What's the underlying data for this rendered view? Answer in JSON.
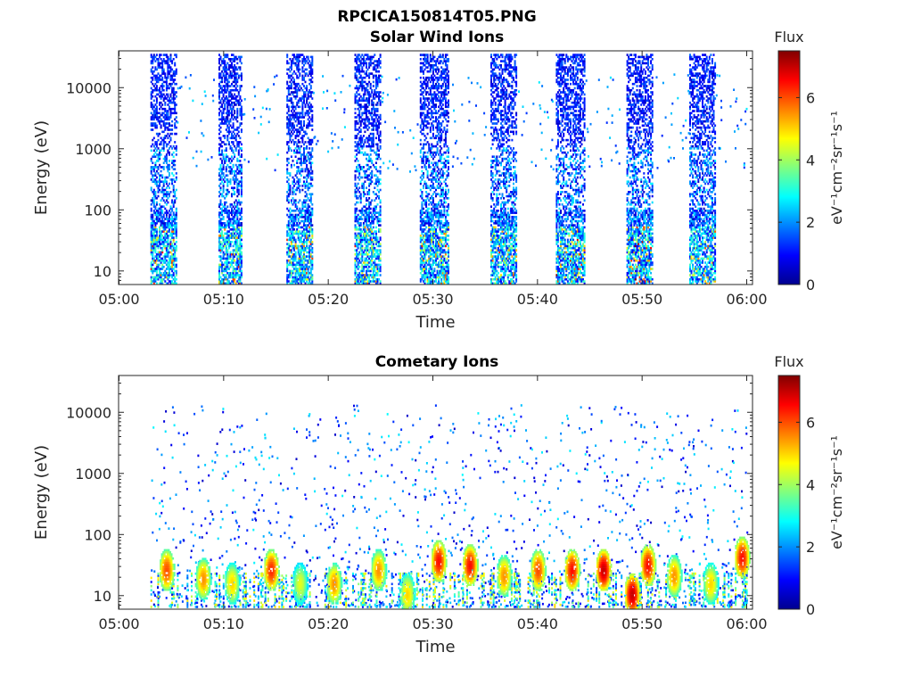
{
  "figure": {
    "title": "RPCICA150814T05.PNG"
  },
  "chart_data": [
    {
      "type": "heatmap",
      "title": "Solar Wind Ions",
      "xlabel": "Time",
      "ylabel": "Energy (eV)",
      "x_ticks": [
        "05:00",
        "05:10",
        "05:20",
        "05:30",
        "05:40",
        "05:50",
        "06:00"
      ],
      "x_range": [
        "05:00",
        "06:00"
      ],
      "y_scale": "log",
      "y_ticks": [
        10,
        100,
        1000,
        10000
      ],
      "y_tick_labels": [
        "10",
        "100",
        "1000",
        "10000"
      ],
      "ylim": [
        6,
        40000
      ],
      "colorbar": {
        "title": "Flux",
        "label": "eV⁻¹cm⁻²sr⁻¹s⁻¹",
        "range": [
          0,
          7.5
        ],
        "ticks": [
          0,
          2,
          4,
          6
        ],
        "colormap": "jet"
      },
      "sweeps": [
        {
          "start": "05:03:00",
          "end": "05:05:30",
          "low_peak_flux": 4.0
        },
        {
          "start": "05:09:30",
          "end": "05:11:45",
          "low_peak_flux": 3.5
        },
        {
          "start": "05:16:00",
          "end": "05:18:30",
          "low_peak_flux": 3.5
        },
        {
          "start": "05:22:30",
          "end": "05:25:00",
          "low_peak_flux": 3.5
        },
        {
          "start": "05:28:45",
          "end": "05:31:30",
          "low_peak_flux": 4.2
        },
        {
          "start": "05:35:30",
          "end": "05:38:00",
          "low_peak_flux": 3.5
        },
        {
          "start": "05:41:45",
          "end": "05:44:30",
          "low_peak_flux": 4.5
        },
        {
          "start": "05:48:30",
          "end": "05:51:00",
          "low_peak_flux": 4.5
        },
        {
          "start": "05:54:30",
          "end": "05:57:00",
          "low_peak_flux": 3.5
        }
      ]
    },
    {
      "type": "heatmap",
      "title": "Cometary Ions",
      "xlabel": "Time",
      "ylabel": "Energy (eV)",
      "x_ticks": [
        "05:00",
        "05:10",
        "05:20",
        "05:30",
        "05:40",
        "05:50",
        "06:00"
      ],
      "x_range": [
        "05:00",
        "06:00"
      ],
      "y_scale": "log",
      "y_ticks": [
        10,
        100,
        1000,
        10000
      ],
      "y_tick_labels": [
        "10",
        "100",
        "1000",
        "10000"
      ],
      "ylim": [
        6,
        40000
      ],
      "colorbar": {
        "title": "Flux",
        "label": "eV⁻¹cm⁻²sr⁻¹s⁻¹",
        "range": [
          0,
          7.5
        ],
        "ticks": [
          0,
          2,
          4,
          6
        ],
        "colormap": "jet"
      },
      "blobs": [
        {
          "time": "05:04:30",
          "energy_eV": 25,
          "flux": 6.0
        },
        {
          "time": "05:08:00",
          "energy_eV": 18,
          "flux": 5.5
        },
        {
          "time": "05:10:45",
          "energy_eV": 15,
          "flux": 5.0
        },
        {
          "time": "05:14:30",
          "energy_eV": 25,
          "flux": 6.3
        },
        {
          "time": "05:17:15",
          "energy_eV": 15,
          "flux": 4.5
        },
        {
          "time": "05:20:30",
          "energy_eV": 15,
          "flux": 5.5
        },
        {
          "time": "05:24:45",
          "energy_eV": 25,
          "flux": 5.5
        },
        {
          "time": "05:27:30",
          "energy_eV": 10,
          "flux": 5.0
        },
        {
          "time": "05:30:30",
          "energy_eV": 35,
          "flux": 6.5
        },
        {
          "time": "05:33:30",
          "energy_eV": 30,
          "flux": 6.5
        },
        {
          "time": "05:36:45",
          "energy_eV": 20,
          "flux": 5.5
        },
        {
          "time": "05:40:00",
          "energy_eV": 25,
          "flux": 6.0
        },
        {
          "time": "05:43:15",
          "energy_eV": 25,
          "flux": 6.5
        },
        {
          "time": "05:46:15",
          "energy_eV": 25,
          "flux": 7.0
        },
        {
          "time": "05:49:00",
          "energy_eV": 10,
          "flux": 7.0
        },
        {
          "time": "05:50:30",
          "energy_eV": 30,
          "flux": 6.5
        },
        {
          "time": "05:53:00",
          "energy_eV": 20,
          "flux": 5.5
        },
        {
          "time": "05:56:30",
          "energy_eV": 15,
          "flux": 5.0
        },
        {
          "time": "05:59:30",
          "energy_eV": 40,
          "flux": 6.5
        }
      ]
    }
  ]
}
